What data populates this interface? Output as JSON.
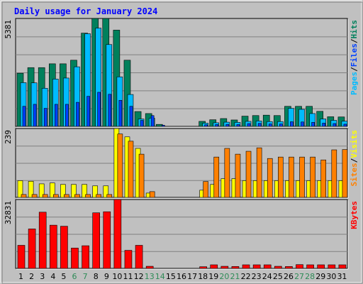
{
  "chart_data": {
    "type": "bar",
    "title": "Daily usage for January 2024",
    "x": [
      "1",
      "2",
      "3",
      "4",
      "5",
      "6",
      "7",
      "8",
      "9",
      "10",
      "11",
      "12",
      "13",
      "14",
      "15",
      "16",
      "17",
      "18",
      "19",
      "20",
      "21",
      "22",
      "23",
      "24",
      "25",
      "26",
      "27",
      "28",
      "29",
      "30",
      "31"
    ],
    "weekend_days": [
      "6",
      "7",
      "13",
      "14",
      "20",
      "21",
      "27",
      "28"
    ],
    "colors": {
      "background": "#c0c0c0",
      "plot": "#c0c0c0",
      "title": "#0000ff",
      "weekend_label": "#2e8b57",
      "weekday_label": "#000000",
      "hits": "#00805c",
      "files": "#00bbff",
      "pages": "#0040ff",
      "visits": "#ffff00",
      "sites": "#ff8000",
      "kbytes": "#ff0000"
    },
    "panels": [
      {
        "name": "hits-files-pages",
        "ymax_label": "5381",
        "ymax": 5381,
        "legend": [
          "Pages",
          "/",
          "Files",
          "/",
          "Hits"
        ],
        "legend_colors": [
          "#00bbff",
          "#000000",
          "#0040ff",
          "#000000",
          "#00805c"
        ],
        "series": [
          {
            "name": "Hits",
            "color": "#00805c",
            "values": [
              2650,
              2930,
              2930,
              3120,
              3120,
              3300,
              4650,
              5380,
              5380,
              4800,
              3300,
              740,
              640,
              100,
              0,
              0,
              0,
              250,
              330,
              390,
              320,
              510,
              540,
              560,
              540,
              1000,
              1000,
              1000,
              750,
              480,
              470
            ]
          },
          {
            "name": "Files",
            "color": "#00bbff",
            "values": [
              2180,
              2170,
              1900,
              2360,
              2410,
              2970,
              4620,
              4900,
              4080,
              2470,
              1590,
              370,
              410,
              0,
              0,
              0,
              0,
              160,
              180,
              210,
              200,
              250,
              270,
              240,
              240,
              900,
              850,
              640,
              370,
              300,
              260
            ]
          },
          {
            "name": "Pages",
            "color": "#0040ff",
            "values": [
              1000,
              1100,
              900,
              1100,
              1100,
              1200,
              1500,
              1700,
              1600,
              1300,
              1000,
              300,
              540,
              60,
              0,
              0,
              0,
              80,
              90,
              100,
              90,
              140,
              150,
              120,
              120,
              230,
              220,
              200,
              160,
              140,
              110
            ]
          }
        ]
      },
      {
        "name": "visits-sites",
        "ymax_label": "239",
        "ymax": 239,
        "legend": [
          "Sites",
          "/",
          "Visits"
        ],
        "legend_colors": [
          "#ff8000",
          "#000000",
          "#ffff00"
        ],
        "series": [
          {
            "name": "Visits",
            "color": "#ffff00",
            "values": [
              58,
              56,
              47,
              50,
              45,
              45,
              45,
              40,
              40,
              239,
              210,
              170,
              15,
              0,
              0,
              0,
              0,
              25,
              45,
              65,
              65,
              58,
              58,
              58,
              58,
              58,
              58,
              58,
              58,
              58,
              58
            ]
          },
          {
            "name": "Sites",
            "color": "#ff8000",
            "values": [
              10,
              10,
              10,
              10,
              10,
              10,
              10,
              10,
              10,
              220,
              195,
              150,
              20,
              0,
              0,
              0,
              0,
              55,
              140,
              170,
              150,
              160,
              172,
              135,
              140,
              140,
              140,
              140,
              130,
              165,
              166
            ]
          }
        ]
      },
      {
        "name": "kbytes",
        "ymax_label": "32831",
        "ymax": 32831,
        "legend": [
          "KBytes"
        ],
        "legend_colors": [
          "#ff0000"
        ],
        "series": [
          {
            "name": "KBytes",
            "color": "#ff0000",
            "values": [
              11000,
              18800,
              26800,
              20600,
              20100,
              9700,
              10800,
              26500,
              27000,
              32831,
              8600,
              11000,
              1000,
              0,
              0,
              0,
              0,
              800,
              1700,
              1000,
              900,
              1700,
              1700,
              1700,
              1000,
              900,
              1800,
              1700,
              1700,
              1700,
              1700
            ]
          }
        ]
      }
    ]
  }
}
